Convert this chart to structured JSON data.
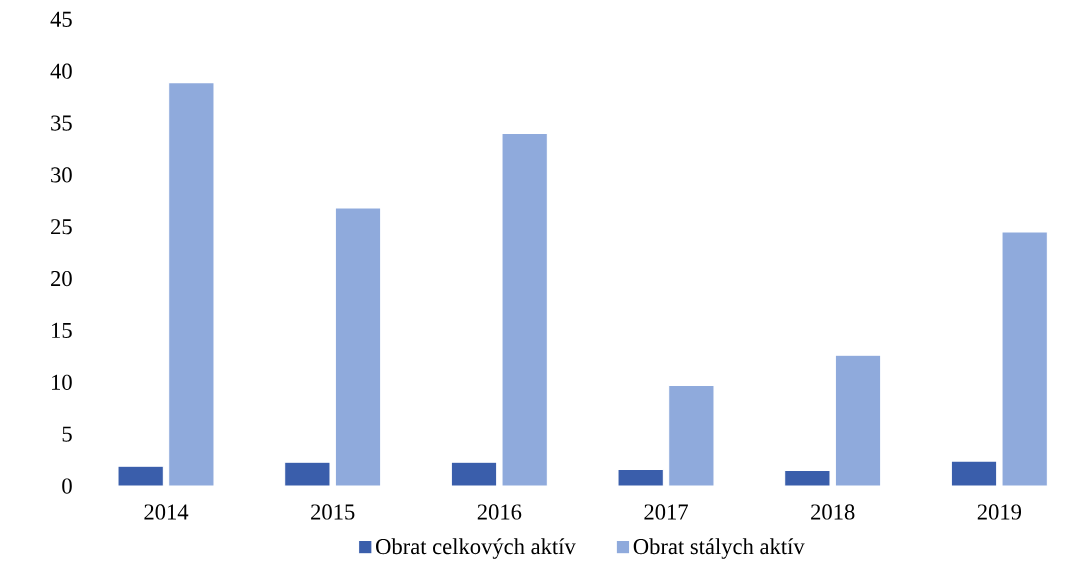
{
  "chart_data": {
    "type": "bar",
    "categories": [
      "2014",
      "2015",
      "2016",
      "2017",
      "2018",
      "2019"
    ],
    "series": [
      {
        "name": "Obrat celkových aktív",
        "color": "#3a5eab",
        "values": [
          1.9,
          2.3,
          2.3,
          1.6,
          1.5,
          2.4
        ]
      },
      {
        "name": "Obrat stálych aktív",
        "color": "#8faadc",
        "values": [
          38.9,
          26.8,
          34.0,
          9.7,
          12.6,
          24.5
        ]
      }
    ],
    "ylim": [
      0,
      45
    ],
    "yticks": [
      0,
      5,
      10,
      15,
      20,
      25,
      30,
      35,
      40,
      45
    ],
    "grid": false,
    "legend": "bottom"
  }
}
